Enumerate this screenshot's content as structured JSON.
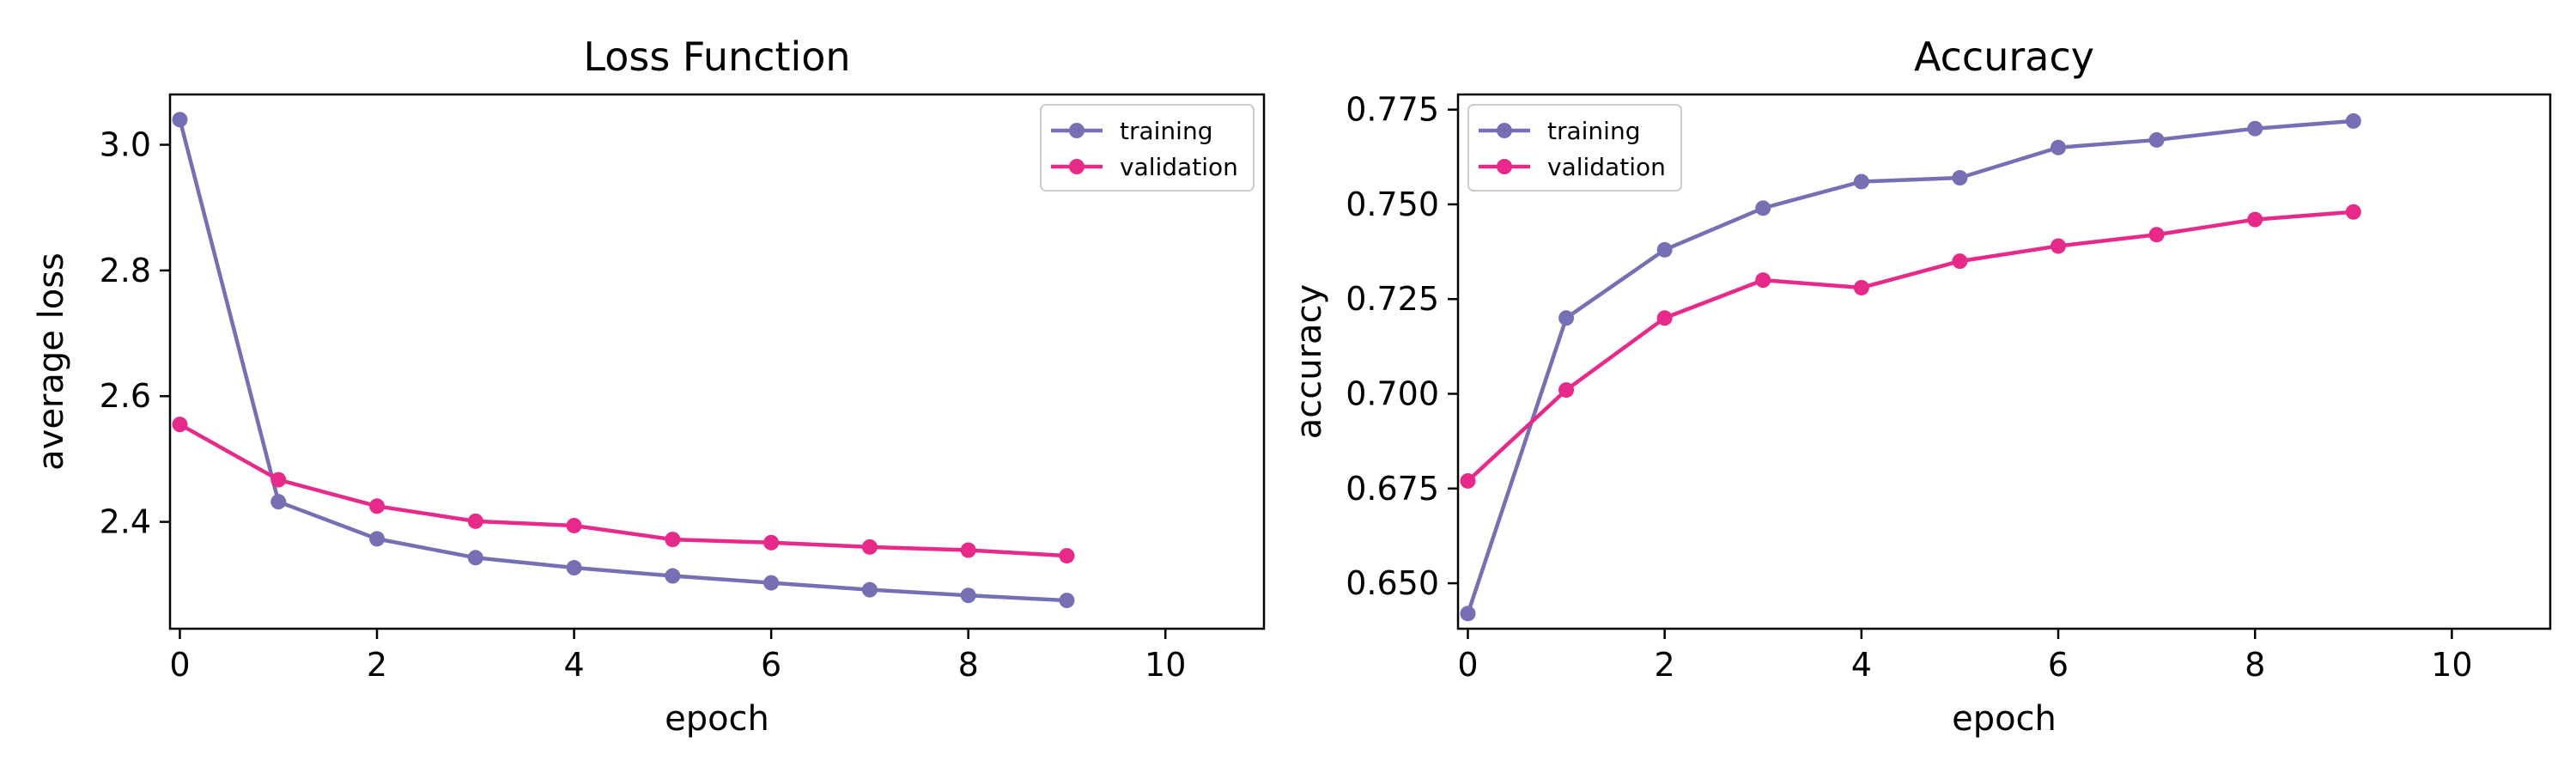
{
  "chart_data": [
    {
      "type": "line",
      "title": "Loss Function",
      "xlabel": "epoch",
      "ylabel": "average loss",
      "xlim": [
        -0.1,
        11
      ],
      "ylim": [
        2.23,
        3.08
      ],
      "xticks": [
        0,
        2,
        4,
        6,
        8,
        10
      ],
      "yticks": [
        2.4,
        2.6,
        2.8,
        3.0
      ],
      "ytick_labels": [
        "2.4",
        "2.6",
        "2.8",
        "3.0"
      ],
      "legend": "top-right",
      "grid": false,
      "x": [
        0,
        1,
        2,
        3,
        4,
        5,
        6,
        7,
        8,
        9
      ],
      "series": [
        {
          "name": "training",
          "color": "#7570b3",
          "values": [
            3.04,
            2.432,
            2.373,
            2.343,
            2.327,
            2.314,
            2.303,
            2.292,
            2.283,
            2.275
          ]
        },
        {
          "name": "validation",
          "color": "#e7298a",
          "values": [
            2.555,
            2.467,
            2.425,
            2.401,
            2.394,
            2.372,
            2.367,
            2.36,
            2.355,
            2.346
          ]
        }
      ]
    },
    {
      "type": "line",
      "title": "Accuracy",
      "xlabel": "epoch",
      "ylabel": "accuracy",
      "xlim": [
        -0.1,
        11
      ],
      "ylim": [
        0.638,
        0.779
      ],
      "xticks": [
        0,
        2,
        4,
        6,
        8,
        10
      ],
      "yticks": [
        0.65,
        0.675,
        0.7,
        0.725,
        0.75,
        0.775
      ],
      "ytick_labels": [
        "0.650",
        "0.675",
        "0.700",
        "0.725",
        "0.750",
        "0.775"
      ],
      "legend": "top-left",
      "grid": false,
      "x": [
        0,
        1,
        2,
        3,
        4,
        5,
        6,
        7,
        8,
        9
      ],
      "series": [
        {
          "name": "training",
          "color": "#7570b3",
          "values": [
            0.642,
            0.72,
            0.738,
            0.749,
            0.756,
            0.757,
            0.765,
            0.767,
            0.77,
            0.772
          ]
        },
        {
          "name": "validation",
          "color": "#e7298a",
          "values": [
            0.677,
            0.701,
            0.72,
            0.73,
            0.728,
            0.735,
            0.739,
            0.742,
            0.746,
            0.748
          ]
        }
      ]
    }
  ]
}
